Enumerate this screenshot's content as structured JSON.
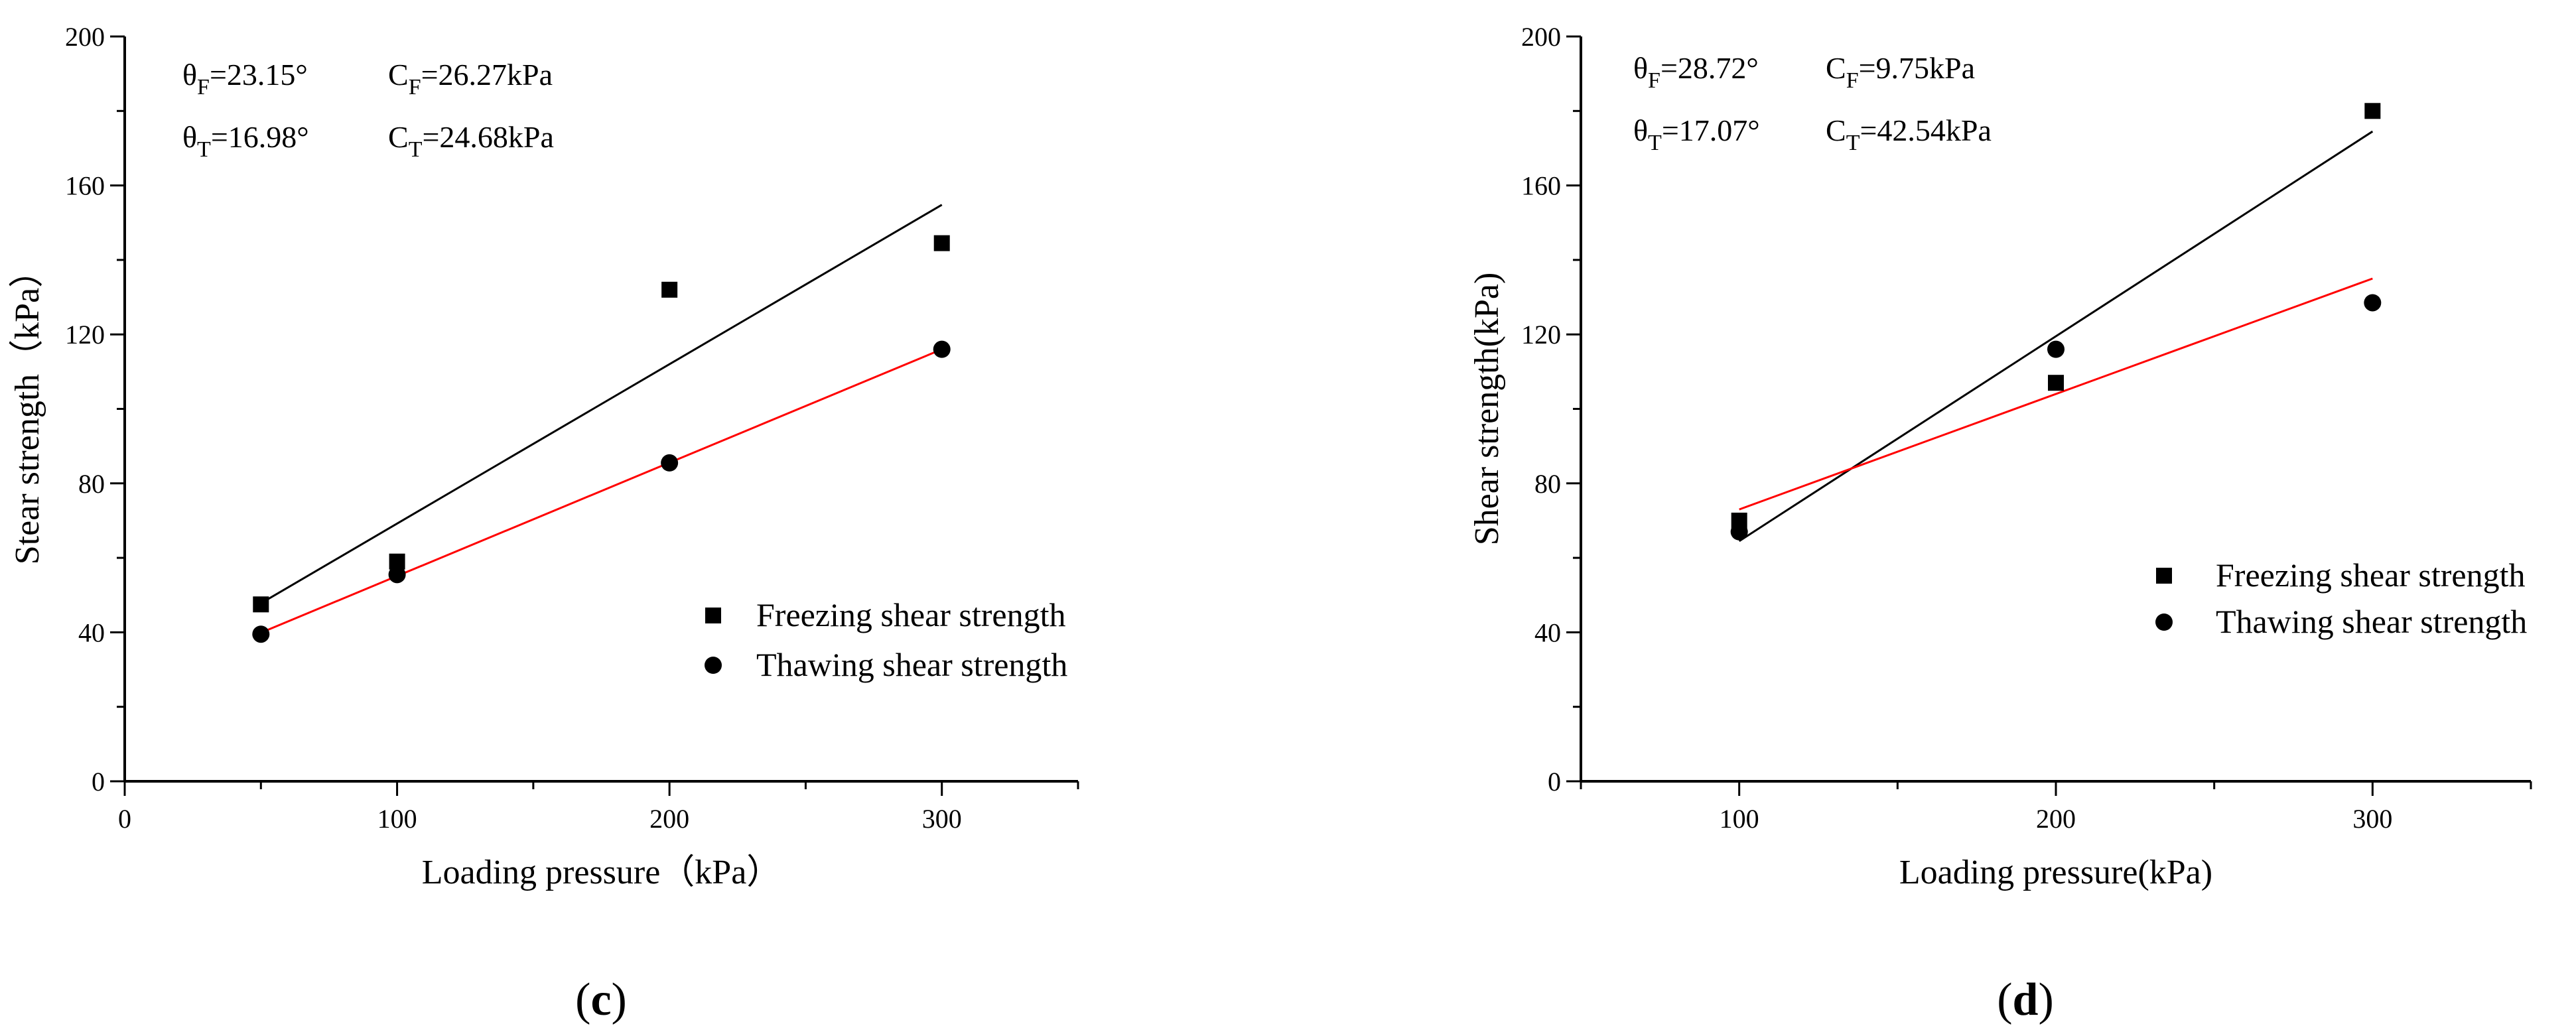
{
  "chart_data": [
    {
      "type": "scatter",
      "panel_label": "c",
      "xlabel": "Loading pressure（kPa）",
      "ylabel": "Stear strength（kPa）",
      "xlim": [
        0,
        350
      ],
      "ylim": [
        0,
        200
      ],
      "x_ticks": [
        0,
        100,
        200,
        300
      ],
      "y_ticks": [
        0,
        40,
        80,
        120,
        160,
        200
      ],
      "annotations": [
        {
          "theta_sym": "θ",
          "theta_sub": "F",
          "theta_val": "=23.15°",
          "c_sym": "C",
          "c_sub": "F",
          "c_val": "=26.27kPa"
        },
        {
          "theta_sym": "θ",
          "theta_sub": "T",
          "theta_val": "=16.98°",
          "c_sym": "C",
          "c_sub": "T",
          "c_val": "=24.68kPa"
        }
      ],
      "legend": {
        "position": "lower-right"
      },
      "series": [
        {
          "name": "Freezing shear strength",
          "marker": "square",
          "color": "#000000",
          "x": [
            50,
            100,
            200,
            300
          ],
          "y": [
            47.5,
            59,
            132,
            144.5
          ],
          "fit": {
            "x": [
              50,
              300
            ],
            "y": [
              47.8,
              154.8
            ],
            "color": "#000000"
          }
        },
        {
          "name": "Thawing shear strength",
          "marker": "circle",
          "color": "#000000",
          "x": [
            50,
            100,
            200,
            300
          ],
          "y": [
            39.5,
            55.5,
            85.5,
            116
          ],
          "fit": {
            "x": [
              50,
              300
            ],
            "y": [
              39.9,
              116
            ],
            "color": "#ff0000"
          }
        }
      ]
    },
    {
      "type": "scatter",
      "panel_label": "d",
      "xlabel": "Loading pressure(kPa)",
      "ylabel": "Shear strength(kPa)",
      "xlim": [
        50,
        350
      ],
      "ylim": [
        0,
        200
      ],
      "x_ticks": [
        100,
        200,
        300
      ],
      "y_ticks": [
        0,
        40,
        80,
        120,
        160,
        200
      ],
      "annotations": [
        {
          "theta_sym": "θ",
          "theta_sub": "F",
          "theta_val": "=28.72°",
          "c_sym": "C",
          "c_sub": "F",
          "c_val": "=9.75kPa"
        },
        {
          "theta_sym": "θ",
          "theta_sub": "T",
          "theta_val": "=17.07°",
          "c_sym": "C",
          "c_sub": "T",
          "c_val": "=42.54kPa"
        }
      ],
      "legend": {
        "position": "lower-right"
      },
      "series": [
        {
          "name": "Freezing shear strength",
          "marker": "square",
          "color": "#000000",
          "x": [
            100,
            200,
            300
          ],
          "y": [
            70,
            107,
            180
          ],
          "fit": {
            "x": [
              100,
              300
            ],
            "y": [
              64.5,
              174.5
            ],
            "color": "#000000"
          }
        },
        {
          "name": "Thawing shear strength",
          "marker": "circle",
          "color": "#000000",
          "x": [
            100,
            200,
            300
          ],
          "y": [
            67,
            116,
            128.5
          ],
          "fit": {
            "x": [
              100,
              300
            ],
            "y": [
              73,
              135
            ],
            "color": "#ff0000"
          }
        }
      ]
    }
  ]
}
